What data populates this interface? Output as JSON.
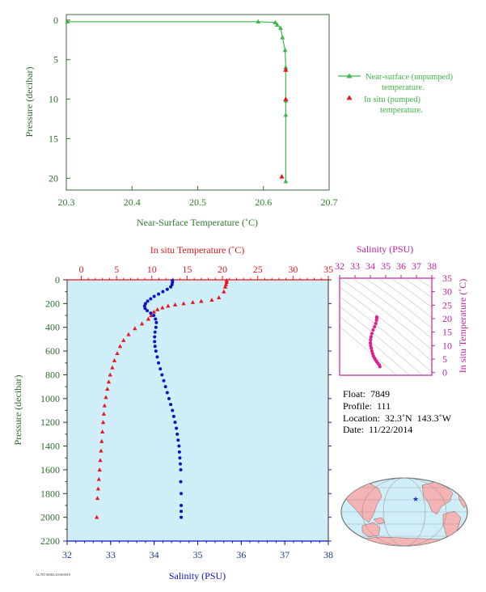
{
  "chart_data": [
    {
      "type": "line",
      "xlabel": "Near-Surface Temperature (˚C)",
      "ylabel": "Pressure (decibar)",
      "xlim": [
        20.3,
        20.7
      ],
      "ylim": [
        21.5,
        -0.7
      ],
      "xticks": [
        "20.3",
        "20.4",
        "20.5",
        "20.6",
        "20.7"
      ],
      "yticks": [
        "0",
        "5",
        "10",
        "15",
        "20"
      ],
      "legend_position": "right",
      "series": [
        {
          "name": "Near-surface (unpumped) temperature.",
          "color": "#3cb84a",
          "marker": "triangle",
          "x": [
            20.302,
            20.592,
            20.618,
            20.621,
            20.626,
            20.629,
            20.633,
            20.634,
            20.634,
            20.634,
            20.634
          ],
          "y": [
            0.2,
            0.2,
            0.3,
            0.6,
            1.0,
            2.2,
            3.8,
            6.0,
            10.2,
            12.0,
            20.4
          ]
        },
        {
          "name": "In situ (pumped) temperature.",
          "color": "#e8161c",
          "marker": "triangle",
          "x": [
            20.634,
            20.634,
            20.628
          ],
          "y": [
            6.3,
            10.0,
            19.8
          ]
        }
      ]
    },
    {
      "type": "line",
      "ylabel": "Pressure (decibar)",
      "ylim": [
        2200,
        0
      ],
      "yticks": [
        "0",
        "200",
        "400",
        "600",
        "800",
        "1000",
        "1200",
        "1400",
        "1600",
        "1800",
        "2000",
        "2200"
      ],
      "top_axis": {
        "label": "In situ Temperature (˚C)",
        "xlim": [
          -2,
          35
        ],
        "ticks": [
          "0",
          "5",
          "10",
          "15",
          "20",
          "25",
          "30",
          "35"
        ],
        "color": "#e8161c"
      },
      "bottom_axis": {
        "label": "Salinity (PSU)",
        "xlim": [
          32,
          38
        ],
        "ticks": [
          "32",
          "33",
          "34",
          "35",
          "36",
          "37",
          "38"
        ],
        "color": "#1010c8"
      },
      "series": [
        {
          "axis": "top",
          "color": "#e8161c",
          "marker": "triangle",
          "x": [
            20.6,
            20.6,
            20.5,
            20.4,
            20.2,
            19.5,
            18.5,
            17.0,
            15.8,
            14.5,
            13.3,
            12.3,
            11.5,
            10.8,
            10.3,
            9.9,
            9.5,
            8.6,
            7.6,
            6.7,
            6.0,
            5.5,
            5.1,
            4.7,
            4.4,
            4.1,
            3.9,
            3.7,
            3.5,
            3.3,
            3.2,
            3.1,
            3.0,
            2.9,
            2.8,
            2.7,
            2.6,
            2.5,
            2.4,
            2.3,
            2.2
          ],
          "y": [
            5,
            20,
            40,
            60,
            100,
            150,
            170,
            180,
            190,
            200,
            210,
            220,
            235,
            250,
            270,
            300,
            330,
            370,
            410,
            460,
            510,
            560,
            620,
            680,
            740,
            800,
            860,
            920,
            990,
            1060,
            1130,
            1200,
            1280,
            1360,
            1440,
            1520,
            1600,
            1680,
            1760,
            1840,
            2000
          ]
        },
        {
          "axis": "bottom",
          "color": "#1010c8",
          "marker": "circle",
          "x": [
            34.42,
            34.42,
            34.41,
            34.38,
            34.3,
            34.2,
            34.1,
            34.0,
            33.92,
            33.85,
            33.8,
            33.78,
            33.79,
            33.84,
            33.92,
            33.99,
            34.03,
            34.05,
            34.04,
            34.02,
            34.01,
            34.01,
            34.02,
            34.04,
            34.07,
            34.1,
            34.14,
            34.18,
            34.22,
            34.26,
            34.3,
            34.34,
            34.38,
            34.42,
            34.45,
            34.48,
            34.51,
            34.53,
            34.55,
            34.57,
            34.58,
            34.59,
            34.6,
            34.61,
            34.61,
            34.62,
            34.62,
            34.62,
            34.62
          ],
          "y": [
            5,
            20,
            40,
            60,
            80,
            100,
            120,
            140,
            160,
            180,
            200,
            220,
            240,
            260,
            280,
            300,
            330,
            360,
            400,
            440,
            480,
            520,
            560,
            600,
            650,
            700,
            750,
            800,
            850,
            900,
            950,
            1000,
            1050,
            1100,
            1150,
            1200,
            1250,
            1300,
            1350,
            1400,
            1450,
            1500,
            1550,
            1600,
            1700,
            1800,
            1900,
            1950,
            2000
          ]
        }
      ]
    },
    {
      "type": "scatter",
      "xlabel": "Salinity (PSU)",
      "ylabel": "In situ Temperature (˚C)",
      "xlim": [
        32,
        38
      ],
      "ylim": [
        -1,
        35
      ],
      "xticks": [
        "32",
        "33",
        "34",
        "35",
        "36",
        "37",
        "38"
      ],
      "yticks": [
        "0",
        "5",
        "10",
        "15",
        "20",
        "25",
        "30",
        "35"
      ],
      "color": "#e0208c",
      "x": [
        34.41,
        34.42,
        34.4,
        34.35,
        34.27,
        34.18,
        34.1,
        34.05,
        34.02,
        34.0,
        34.02,
        34.06,
        34.1,
        34.15,
        34.2,
        34.27,
        34.35,
        34.42,
        34.5,
        34.58,
        34.62
      ],
      "y": [
        20.6,
        20.2,
        19.4,
        18.2,
        17.0,
        15.8,
        14.5,
        13.3,
        12.2,
        11.0,
        10.0,
        9.0,
        8.0,
        7.0,
        6.1,
        5.3,
        4.6,
        4.0,
        3.4,
        2.8,
        2.2
      ]
    }
  ],
  "legend": {
    "near_surface": "Near-surface (unpumped)\ntemperature.",
    "in_situ": "In situ (pumped)\ntemperature."
  },
  "info": {
    "float": "Float:  7849",
    "profile": "Profile:  111",
    "location": "Location:  32.3˚N  143.3˚W",
    "date": "Date:  11/22/2014"
  },
  "map": {
    "marker_symbol": "★",
    "marker_color": "#2030c0",
    "land_color": "#f4b4b4",
    "ocean_color": "#d0eef8"
  },
  "footer_code": "AL/NT/3838A 20/08/0018"
}
